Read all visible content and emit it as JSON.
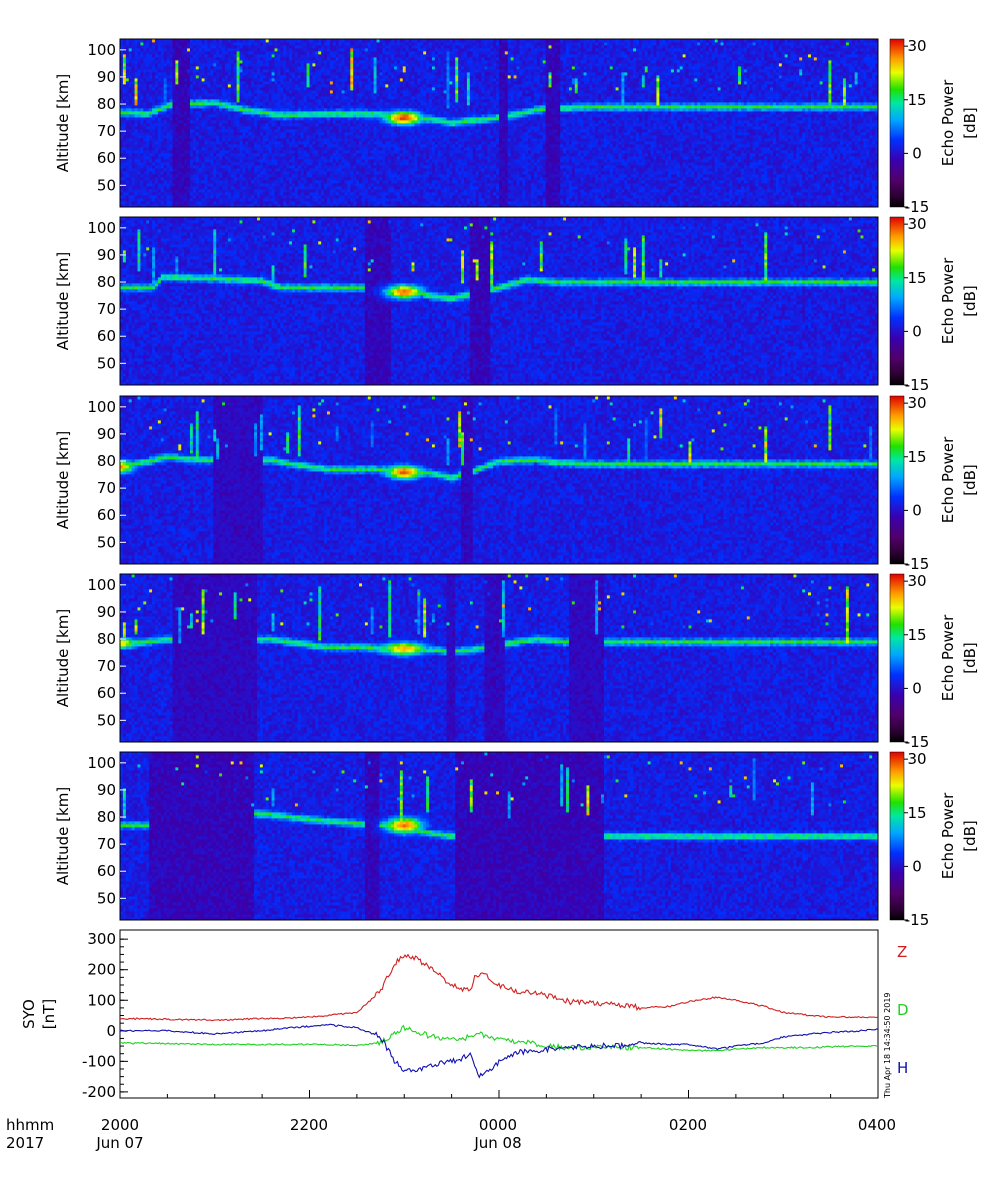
{
  "chart_data": [
    {
      "type": "heatmap",
      "panel": 1,
      "ylabel": "Altitude [km]",
      "ylim": [
        42,
        104
      ],
      "yticks": [
        "100",
        "90",
        "80",
        "70",
        "60",
        "50"
      ],
      "colorbar": {
        "label": "Echo Power [dB]",
        "ticks": [
          "30",
          "15",
          "0",
          "-15"
        ],
        "range": [
          -15,
          32
        ]
      },
      "layer": [
        [
          0,
          77
        ],
        [
          0.3,
          76.5
        ],
        [
          0.55,
          80
        ],
        [
          1.0,
          80.5
        ],
        [
          1.3,
          78
        ],
        [
          1.7,
          76
        ],
        [
          2.2,
          76.5
        ],
        [
          2.7,
          76.5
        ],
        [
          3.0,
          75
        ],
        [
          3.3,
          74.5
        ],
        [
          3.5,
          73
        ],
        [
          3.7,
          74
        ],
        [
          4.0,
          75
        ],
        [
          4.4,
          78
        ],
        [
          4.9,
          79
        ]
      ],
      "blobs": [
        [
          3.0,
          75,
          0.2,
          2.5,
          32
        ]
      ],
      "gaps": [
        [
          0.55,
          0.75
        ],
        [
          4.0,
          4.1
        ],
        [
          4.5,
          4.65
        ]
      ]
    },
    {
      "type": "heatmap",
      "panel": 2,
      "ylabel": "Altitude [km]",
      "ylim": [
        42,
        104
      ],
      "yticks": [
        "100",
        "90",
        "80",
        "70",
        "60",
        "50"
      ],
      "colorbar": {
        "label": "Echo Power [dB]",
        "ticks": [
          "30",
          "15",
          "0",
          "-15"
        ],
        "range": [
          -15,
          32
        ]
      },
      "layer": [
        [
          0,
          78
        ],
        [
          0.35,
          78
        ],
        [
          0.45,
          82
        ],
        [
          0.9,
          81.5
        ],
        [
          1.5,
          80.5
        ],
        [
          1.7,
          78
        ],
        [
          2.2,
          78
        ],
        [
          2.7,
          78
        ],
        [
          3.0,
          77
        ],
        [
          3.3,
          75
        ],
        [
          3.5,
          74
        ],
        [
          4.0,
          78
        ],
        [
          4.3,
          81
        ],
        [
          4.6,
          80
        ],
        [
          4.9,
          80
        ]
      ],
      "blobs": [
        [
          3.0,
          76.5,
          0.2,
          2.5,
          30
        ]
      ],
      "gaps": [
        [
          2.6,
          2.85
        ],
        [
          3.7,
          3.9
        ]
      ]
    },
    {
      "type": "heatmap",
      "panel": 3,
      "ylabel": "Altitude [km]",
      "ylim": [
        42,
        104
      ],
      "yticks": [
        "100",
        "90",
        "80",
        "70",
        "60",
        "50"
      ],
      "colorbar": {
        "label": "Echo Power [dB]",
        "ticks": [
          "30",
          "15",
          "0",
          "-15"
        ],
        "range": [
          -15,
          32
        ]
      },
      "layer": [
        [
          0,
          78
        ],
        [
          0.3,
          80
        ],
        [
          0.5,
          81.5
        ],
        [
          0.9,
          80.5
        ],
        [
          1.3,
          80
        ],
        [
          1.6,
          80.5
        ],
        [
          1.8,
          79
        ],
        [
          2.2,
          77
        ],
        [
          2.7,
          77
        ],
        [
          3.0,
          76.5
        ],
        [
          3.3,
          75.5
        ],
        [
          3.5,
          74
        ],
        [
          3.7,
          76
        ],
        [
          4.0,
          80
        ],
        [
          4.4,
          80.5
        ],
        [
          4.6,
          79.5
        ],
        [
          4.9,
          79
        ]
      ],
      "blobs": [
        [
          3.0,
          76,
          0.2,
          2.5,
          31
        ],
        [
          0.0,
          78,
          0.15,
          2.5,
          27
        ]
      ],
      "gaps": [
        [
          1.0,
          1.5
        ],
        [
          3.6,
          3.72
        ]
      ]
    },
    {
      "type": "heatmap",
      "panel": 4,
      "ylabel": "Altitude [km]",
      "ylim": [
        42,
        104
      ],
      "yticks": [
        "100",
        "90",
        "80",
        "70",
        "60",
        "50"
      ],
      "colorbar": {
        "label": "Echo Power [dB]",
        "ticks": [
          "30",
          "15",
          "0",
          "-15"
        ],
        "range": [
          -15,
          32
        ]
      },
      "layer": [
        [
          0,
          78.5
        ],
        [
          0.3,
          79
        ],
        [
          0.5,
          80
        ],
        [
          1.0,
          80
        ],
        [
          1.6,
          80
        ],
        [
          1.8,
          79
        ],
        [
          2.2,
          77
        ],
        [
          2.6,
          77
        ],
        [
          2.9,
          76
        ],
        [
          3.3,
          76
        ],
        [
          3.5,
          75.5
        ],
        [
          3.7,
          76
        ],
        [
          4.0,
          78
        ],
        [
          4.4,
          80
        ],
        [
          4.7,
          79
        ],
        [
          4.9,
          79
        ]
      ],
      "blobs": [
        [
          3.0,
          76.5,
          0.25,
          2.5,
          27
        ],
        [
          0.0,
          78.5,
          0.2,
          2.0,
          25
        ]
      ],
      "gaps": [
        [
          0.55,
          1.45
        ],
        [
          3.45,
          3.55
        ],
        [
          3.85,
          4.05
        ],
        [
          4.75,
          5.1
        ]
      ]
    },
    {
      "type": "heatmap",
      "panel": 5,
      "ylabel": "Altitude [km]",
      "ylim": [
        42,
        104
      ],
      "yticks": [
        "100",
        "90",
        "80",
        "70",
        "60",
        "50"
      ],
      "colorbar": {
        "label": "Echo Power [dB]",
        "ticks": [
          "30",
          "15",
          "0",
          "-15"
        ],
        "range": [
          -15,
          32
        ]
      },
      "layer": [
        [
          0,
          77
        ],
        [
          0.3,
          77
        ],
        [
          0.5,
          79
        ],
        [
          1.0,
          82
        ],
        [
          1.6,
          81
        ],
        [
          1.8,
          80
        ],
        [
          2.2,
          78.5
        ],
        [
          2.6,
          77.5
        ],
        [
          2.8,
          77
        ],
        [
          3.0,
          76
        ],
        [
          3.3,
          74
        ],
        [
          3.5,
          73
        ]
      ],
      "blobs": [
        [
          3.0,
          77,
          0.2,
          3.0,
          30
        ]
      ],
      "gaps": [
        [
          0.3,
          1.4
        ],
        [
          2.6,
          2.75
        ],
        [
          3.55,
          5.1
        ]
      ]
    },
    {
      "type": "line",
      "ylabel": "SYO [nT]",
      "ylim": [
        -220,
        330
      ],
      "yticks": [
        "300",
        "200",
        "100",
        "0",
        "-100",
        "-200"
      ],
      "x_hours": [
        0,
        0.5,
        1.0,
        1.5,
        1.8,
        2.0,
        2.2,
        2.5,
        2.75,
        2.9,
        3.0,
        3.1,
        3.3,
        3.5,
        3.7,
        3.75,
        3.8,
        3.9,
        4.0,
        4.2,
        4.5,
        4.75,
        5.0,
        5.3,
        5.5,
        5.8,
        6.0,
        6.3,
        6.5,
        6.8,
        7.0,
        7.3,
        7.5,
        7.8,
        8.0
      ],
      "series": [
        {
          "name": "Z",
          "color": "#d02020",
          "values": [
            40,
            38,
            35,
            40,
            42,
            45,
            50,
            60,
            130,
            220,
            250,
            240,
            200,
            150,
            130,
            180,
            190,
            175,
            150,
            130,
            115,
            95,
            90,
            85,
            75,
            80,
            95,
            110,
            100,
            80,
            60,
            50,
            45,
            45,
            45
          ]
        },
        {
          "name": "D",
          "color": "#20d020",
          "values": [
            -40,
            -42,
            -45,
            -45,
            -44,
            -45,
            -45,
            -48,
            -40,
            -10,
            10,
            0,
            -20,
            -30,
            -20,
            -15,
            -10,
            -20,
            -30,
            -35,
            -50,
            -55,
            -55,
            -55,
            -55,
            -60,
            -65,
            -65,
            -60,
            -55,
            -55,
            -55,
            -52,
            -50,
            -50
          ]
        },
        {
          "name": "H",
          "color": "#1010b0",
          "values": [
            0,
            0,
            -10,
            0,
            10,
            15,
            20,
            10,
            -20,
            -100,
            -130,
            -130,
            -110,
            -100,
            -80,
            -130,
            -150,
            -130,
            -100,
            -70,
            -60,
            -55,
            -50,
            -50,
            -40,
            -45,
            -45,
            -60,
            -50,
            -40,
            -20,
            -10,
            -5,
            0,
            5
          ]
        }
      ]
    }
  ],
  "x_axis": {
    "row1_label": "hhmm",
    "row2_label": "2017",
    "ticks": [
      {
        "time": "2000",
        "date": "Jun 07"
      },
      {
        "time": "2200",
        "date": ""
      },
      {
        "time": "0000",
        "date": "Jun 08"
      },
      {
        "time": "0200",
        "date": ""
      },
      {
        "time": "0400",
        "date": ""
      }
    ]
  },
  "line_labels": {
    "z": "Z",
    "d": "D",
    "h": "H"
  },
  "timestamp": "Thu Apr 18 14:34:50 2019"
}
